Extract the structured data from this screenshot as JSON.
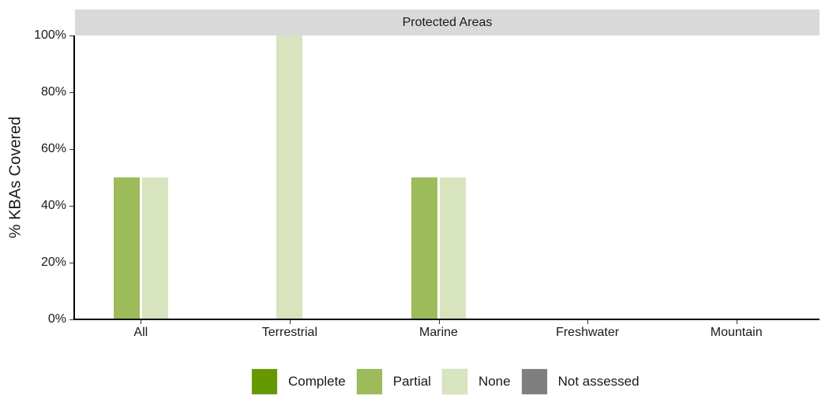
{
  "chart_data": {
    "type": "bar",
    "title": "",
    "facet": "Protected Areas",
    "xlabel": "",
    "ylabel": "% KBAs Covered",
    "ylim": [
      0,
      100
    ],
    "yticks": [
      "0%",
      "20%",
      "40%",
      "60%",
      "80%",
      "100%"
    ],
    "categories": [
      "All",
      "Terrestrial",
      "Marine",
      "Freshwater",
      "Mountain"
    ],
    "series": [
      {
        "name": "Complete",
        "color": "#669900",
        "values": [
          0,
          0,
          0,
          0,
          0
        ]
      },
      {
        "name": "Partial",
        "color": "#9cbb59",
        "values": [
          50,
          0,
          50,
          0,
          0
        ]
      },
      {
        "name": "None",
        "color": "#d8e4bd",
        "values": [
          50,
          100,
          50,
          0,
          0
        ]
      },
      {
        "name": "Not assessed",
        "color": "#7f7f7f",
        "values": [
          0,
          0,
          0,
          0,
          0
        ]
      }
    ],
    "legend_position": "bottom",
    "grid": false
  },
  "strip": {
    "label": "Protected Areas"
  },
  "axis": {
    "ytitle": "% KBAs Covered",
    "yticks": [
      "0%",
      "20%",
      "40%",
      "60%",
      "80%",
      "100%"
    ],
    "xticks": [
      "All",
      "Terrestrial",
      "Marine",
      "Freshwater",
      "Mountain"
    ]
  },
  "legend": {
    "items": [
      {
        "label": "Complete",
        "color": "#669900"
      },
      {
        "label": "Partial",
        "color": "#9cbb59"
      },
      {
        "label": "None",
        "color": "#d8e4bd"
      },
      {
        "label": "Not assessed",
        "color": "#7f7f7f"
      }
    ]
  }
}
